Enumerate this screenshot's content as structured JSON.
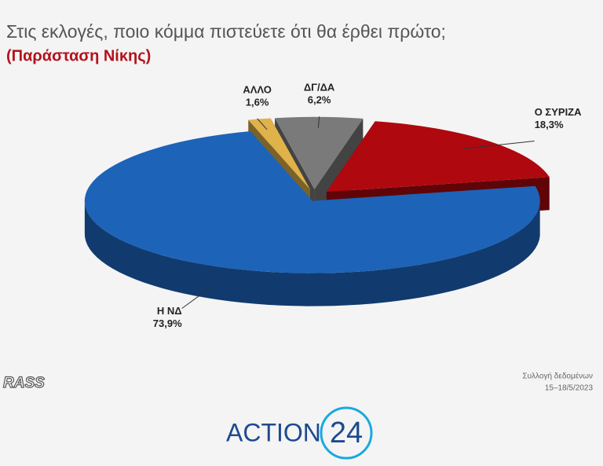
{
  "chart_data": {
    "type": "pie",
    "title": "Στις εκλογές, ποιο κόμμα πιστεύετε ότι θα έρθει πρώτο;",
    "subtitle": "(Παράσταση Νίκης)",
    "categories": [
      "ΔΓ/ΔΑ",
      "Ο ΣΥΡΙΖΑ",
      "Η ΝΔ",
      "ΑΛΛΟ"
    ],
    "values": [
      6.2,
      18.3,
      73.9,
      1.6
    ],
    "value_labels": [
      "6,2%",
      "18,3%",
      "73,9%",
      "1,6%"
    ],
    "colors": [
      "#7a7a7a",
      "#b0080f",
      "#1d63b8",
      "#dfb24a"
    ]
  },
  "source": {
    "label": "Συλλογή δεδομένων",
    "dates": "15–18/5/2023"
  },
  "branding": {
    "pollster": "RASS",
    "channel": "ACTION",
    "channel_number": "24"
  }
}
